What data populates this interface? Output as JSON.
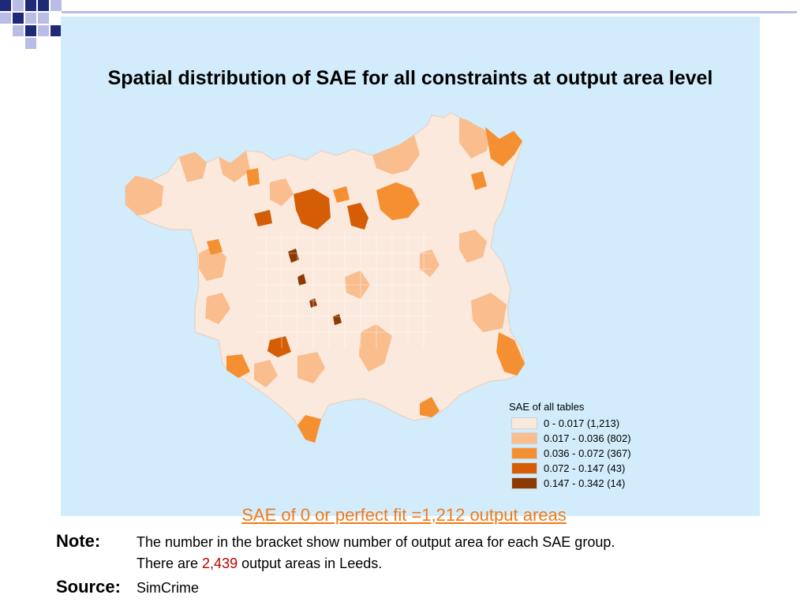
{
  "title": "Spatial distribution of SAE for all constraints at output area level",
  "legend": {
    "title": "SAE of all tables",
    "items": [
      {
        "label": "0 - 0.017 (1,213)",
        "color": "#fbe9dd"
      },
      {
        "label": "0.017 - 0.036 (802)",
        "color": "#f9bd8e"
      },
      {
        "label": "0.036 - 0.072 (367)",
        "color": "#f59032"
      },
      {
        "label": "0.072 - 0.147 (43)",
        "color": "#d45d05"
      },
      {
        "label": "0.147 - 0.342 (14)",
        "color": "#8c3a03"
      }
    ]
  },
  "subtitle": "SAE of 0 or perfect fit =1,212 output areas",
  "note": {
    "label": "Note:",
    "line1": "The number in the bracket show number of output area for each SAE group.",
    "line2_prefix": "There are ",
    "line2_number": "2,439",
    "line2_suffix": " output areas in Leeds."
  },
  "source": {
    "label": "Source:",
    "value": "SimCrime"
  },
  "colors": {
    "map_background": "#d2ecfb",
    "accent": "#f07a17",
    "deco_navy": "#1e2a78",
    "deco_lavender": "#b9bde6"
  }
}
